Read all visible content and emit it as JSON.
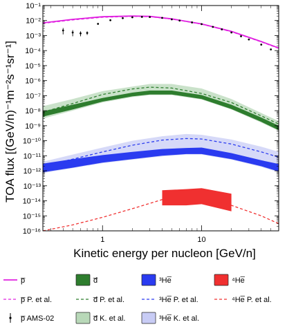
{
  "chart_data": {
    "type": "line",
    "xlabel": "Kinetic energy per nucleon [GeV/n]",
    "ylabel": "TOA flux [(GeV/n)⁻¹m⁻²s⁻¹sr⁻¹]",
    "x_scale": "log",
    "y_scale": "log",
    "xlim": [
      0.25,
      60
    ],
    "ylim": [
      1e-16,
      0.1
    ],
    "x_ticks": [
      {
        "value": 1,
        "label": "1"
      },
      {
        "value": 10,
        "label": "10"
      }
    ],
    "y_ticks": [
      {
        "exp": -16,
        "label": "10⁻¹⁶"
      },
      {
        "exp": -15,
        "label": "10⁻¹⁵"
      },
      {
        "exp": -14,
        "label": "10⁻¹⁴"
      },
      {
        "exp": -13,
        "label": "10⁻¹³"
      },
      {
        "exp": -12,
        "label": "10⁻¹²"
      },
      {
        "exp": -11,
        "label": "10⁻¹¹"
      },
      {
        "exp": -10,
        "label": "10⁻¹⁰"
      },
      {
        "exp": -9,
        "label": "10⁻⁹"
      },
      {
        "exp": -8,
        "label": "10⁻⁸"
      },
      {
        "exp": -7,
        "label": "10⁻⁷"
      },
      {
        "exp": -6,
        "label": "10⁻⁶"
      },
      {
        "exp": -5,
        "label": "10⁻⁵"
      },
      {
        "exp": -4,
        "label": "10⁻⁴"
      },
      {
        "exp": -3,
        "label": "10⁻³"
      },
      {
        "exp": -2,
        "label": "10⁻²"
      },
      {
        "exp": -1,
        "label": "10⁻¹"
      }
    ],
    "series": [
      {
        "name": "p̅",
        "kind": "line",
        "color": "#e020e0",
        "x": [
          0.25,
          0.5,
          1,
          2,
          3,
          5,
          10,
          20,
          40,
          60
        ],
        "y": [
          0.007,
          0.012,
          0.018,
          0.02,
          0.019,
          0.013,
          0.006,
          0.0019,
          0.0004,
          0.00015
        ]
      },
      {
        "name": "p̅ P. et al.",
        "kind": "dashed",
        "color": "#e020e0",
        "x": [
          0.25,
          0.5,
          1,
          2,
          3,
          5,
          10,
          20,
          40,
          60
        ],
        "y": [
          0.0065,
          0.011,
          0.0165,
          0.019,
          0.018,
          0.0125,
          0.0058,
          0.0018,
          0.00038,
          0.00014
        ]
      },
      {
        "name": "p̅ AMS-02",
        "kind": "points",
        "color": "#000000",
        "x": [
          0.4,
          0.5,
          0.6,
          0.7,
          0.9,
          1.2,
          1.6,
          2,
          2.5,
          3,
          4,
          5,
          6,
          8,
          10,
          13,
          16,
          20,
          25,
          30,
          40,
          50
        ],
        "y": [
          0.0022,
          0.0016,
          0.0014,
          0.0015,
          0.006,
          0.0105,
          0.0145,
          0.0165,
          0.0175,
          0.0172,
          0.015,
          0.012,
          0.01,
          0.0075,
          0.0058,
          0.0038,
          0.0026,
          0.0016,
          0.0009,
          0.00055,
          0.00025,
          0.00012
        ],
        "yerr": [
          0.001,
          0.0007,
          0.0005,
          0.0004,
          0.0006,
          0.0006,
          0.0006,
          0.0006,
          0.0006,
          0.0006,
          0.0005,
          0.0004,
          0.0004,
          0.0003,
          0.0002,
          0.00015,
          0.0001,
          8e-05,
          5e-05,
          4e-05,
          2e-05,
          1e-05
        ]
      },
      {
        "name": "d̅",
        "kind": "band",
        "color": "#2e7d2e",
        "x": [
          0.25,
          0.5,
          1,
          2,
          3,
          5,
          10,
          20,
          40,
          60
        ],
        "ylow": [
          4e-09,
          1.2e-08,
          4e-08,
          9e-08,
          1.2e-07,
          1.2e-07,
          6e-08,
          1.3e-08,
          1.8e-09,
          5e-10
        ],
        "yhigh": [
          9e-09,
          2.5e-08,
          7e-08,
          1.6e-07,
          2.2e-07,
          2.2e-07,
          1.1e-07,
          2.5e-08,
          3.5e-09,
          1e-09
        ]
      },
      {
        "name": "d̅ P. et al.",
        "kind": "dashed",
        "color": "#2e7d2e",
        "x": [
          0.25,
          0.5,
          1,
          2,
          3,
          5,
          10,
          20,
          40,
          60
        ],
        "y": [
          8e-09,
          3e-08,
          1.2e-07,
          2.8e-07,
          3.7e-07,
          3.2e-07,
          1.4e-07,
          3.5e-08,
          4.5e-09,
          1.3e-09
        ]
      },
      {
        "name": "d̅ K. et al.",
        "kind": "band",
        "color": "#b8d8b8",
        "x": [
          0.25,
          0.5,
          1,
          2,
          3,
          5,
          10,
          20,
          40,
          60
        ],
        "ylow": [
          3e-09,
          1e-08,
          3.5e-08,
          8e-08,
          1.1e-07,
          1.1e-07,
          5.5e-08,
          1.2e-08,
          1.6e-09,
          4.5e-10
        ],
        "yhigh": [
          2e-08,
          6e-08,
          2e-07,
          4e-07,
          6e-07,
          6e-07,
          3e-07,
          6e-08,
          7e-09,
          2e-09
        ]
      },
      {
        "name": "³He̅",
        "kind": "band",
        "color": "#2a3bf0",
        "x": [
          0.25,
          0.5,
          1,
          2,
          4,
          7,
          10,
          20,
          40,
          60
        ],
        "ylow": [
          8e-13,
          1.6e-12,
          3.5e-12,
          6e-12,
          1e-11,
          1.3e-11,
          1.3e-11,
          6e-12,
          2e-12,
          9e-13
        ],
        "yhigh": [
          3e-12,
          6e-12,
          1.1e-11,
          1.8e-11,
          2.8e-11,
          3.3e-11,
          3.5e-11,
          1.5e-11,
          5e-12,
          2.8e-12
        ]
      },
      {
        "name": "³He̅ P. et al.",
        "kind": "dashed",
        "color": "#2a3bf0",
        "x": [
          0.25,
          0.5,
          1,
          2,
          4,
          7,
          10,
          20,
          40,
          60
        ],
        "y": [
          2e-12,
          6e-12,
          1.8e-11,
          5e-11,
          1.1e-10,
          1.4e-10,
          1.3e-10,
          6e-11,
          1.8e-11,
          8e-12
        ]
      },
      {
        "name": "³He̅ K. et al.",
        "kind": "band",
        "color": "#c8ccf5",
        "x": [
          0.25,
          0.5,
          1,
          2,
          4,
          7,
          10,
          20,
          40,
          60
        ],
        "ylow": [
          7e-13,
          1.5e-12,
          3.2e-12,
          5.5e-12,
          9e-12,
          1.2e-11,
          1.2e-11,
          5.5e-12,
          1.8e-12,
          8e-13
        ],
        "yhigh": [
          4e-12,
          1.2e-11,
          3.5e-11,
          1e-10,
          2e-10,
          2.8e-10,
          2.5e-10,
          1.2e-10,
          4e-11,
          1.8e-11
        ]
      },
      {
        "name": "⁴He̅",
        "kind": "band",
        "color": "#f03030",
        "x": [
          4,
          7,
          10,
          20
        ],
        "ylow": [
          5e-15,
          5e-15,
          6e-15,
          2e-15
        ],
        "yhigh": [
          5e-14,
          6e-14,
          7e-14,
          3e-14
        ]
      },
      {
        "name": "⁴He̅ P. et al.",
        "kind": "dashed",
        "color": "#f03030",
        "x": [
          0.25,
          0.5,
          1,
          2,
          4,
          7,
          10,
          20,
          40,
          60
        ],
        "y": [
          1e-16,
          2.5e-16,
          8e-16,
          3e-15,
          1.2e-14,
          2.2e-14,
          1.8e-14,
          5e-15,
          1e-15,
          3e-16
        ]
      }
    ]
  }
}
